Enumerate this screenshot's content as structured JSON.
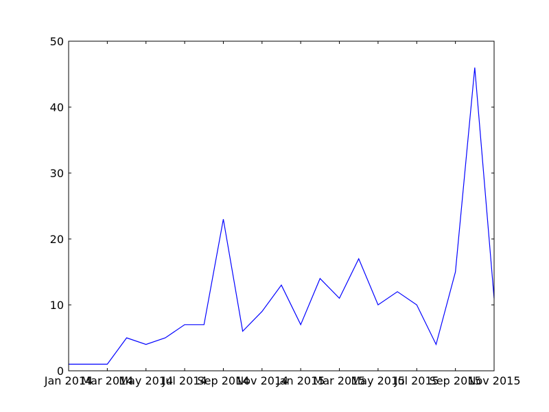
{
  "chart_data": {
    "type": "line",
    "title": "",
    "xlabel": "",
    "ylabel": "",
    "x": [
      "2014-01",
      "2014-02",
      "2014-03",
      "2014-04",
      "2014-05",
      "2014-06",
      "2014-07",
      "2014-08",
      "2014-09",
      "2014-10",
      "2014-11",
      "2014-12",
      "2015-01",
      "2015-02",
      "2015-03",
      "2015-04",
      "2015-05",
      "2015-06",
      "2015-07",
      "2015-08",
      "2015-09",
      "2015-10",
      "2015-11"
    ],
    "series": [
      {
        "values": [
          1,
          1,
          1,
          5,
          4,
          5,
          7,
          7,
          23,
          6,
          9,
          13,
          7,
          14,
          11,
          17,
          10,
          12,
          10,
          4,
          15,
          46,
          11
        ]
      }
    ],
    "xlim": [
      "2014-01",
      "2015-11"
    ],
    "ylim": [
      0,
      50
    ],
    "yticks": [
      0,
      10,
      20,
      30,
      40,
      50
    ],
    "xticks": [
      {
        "x": "2014-01",
        "label": "Jan 2014"
      },
      {
        "x": "2014-03",
        "label": "Mar 2014"
      },
      {
        "x": "2014-05",
        "label": "May 2014"
      },
      {
        "x": "2014-07",
        "label": "Jul 2014"
      },
      {
        "x": "2014-09",
        "label": "Sep 2014"
      },
      {
        "x": "2014-11",
        "label": "Nov 2014"
      },
      {
        "x": "2015-01",
        "label": "Jan 2015"
      },
      {
        "x": "2015-03",
        "label": "Mar 2015"
      },
      {
        "x": "2015-05",
        "label": "May 2015"
      },
      {
        "x": "2015-07",
        "label": "Jul 2015"
      },
      {
        "x": "2015-09",
        "label": "Sep 2015"
      },
      {
        "x": "2015-11",
        "label": "Nov 2015"
      }
    ],
    "grid": false,
    "legend": "none",
    "line_color": "#0000ff"
  }
}
